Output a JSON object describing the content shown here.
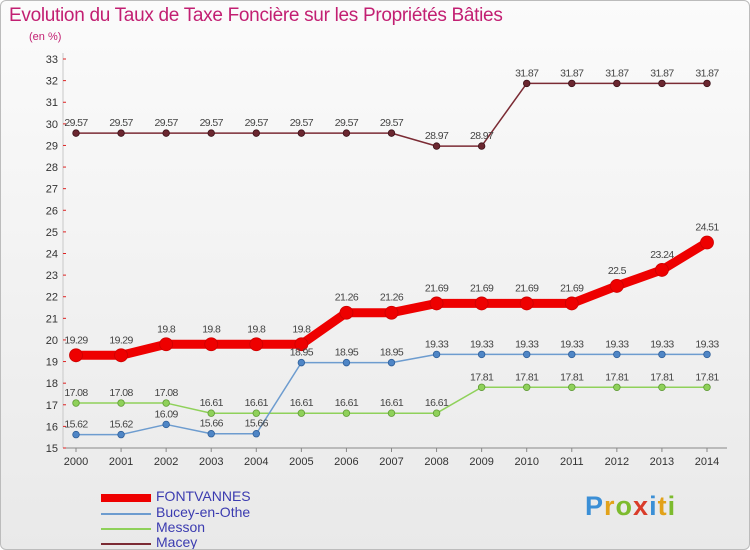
{
  "header": {
    "title": "Evolution du Taux de Taxe Foncière sur les Propriétés Bâties",
    "unit": "(en %)"
  },
  "chart_data": {
    "type": "line",
    "title": "Evolution du Taux de Taxe Foncière sur les Propriétés Bâties",
    "ylabel": "(en %)",
    "xlabel": "",
    "x": [
      2000,
      2001,
      2002,
      2003,
      2004,
      2005,
      2006,
      2007,
      2008,
      2009,
      2010,
      2011,
      2012,
      2013,
      2014
    ],
    "ylim": [
      15,
      33
    ],
    "yticks": [
      15,
      16,
      17,
      18,
      19,
      20,
      21,
      22,
      23,
      24,
      25,
      26,
      27,
      28,
      29,
      30,
      31,
      32,
      33
    ],
    "grid": false,
    "legend_position": "bottom-left",
    "series": [
      {
        "name": "FONTVANNES",
        "color": "#ee0000",
        "values": [
          19.29,
          19.29,
          19.8,
          19.8,
          19.8,
          19.8,
          21.26,
          21.26,
          21.69,
          21.69,
          21.69,
          21.69,
          22.5,
          23.24,
          24.51
        ]
      },
      {
        "name": "Bucey-en-Othe",
        "color": "#6d9ccf",
        "values": [
          15.62,
          15.62,
          16.09,
          15.66,
          15.66,
          18.95,
          18.95,
          18.95,
          19.33,
          19.33,
          19.33,
          19.33,
          19.33,
          19.33,
          19.33
        ]
      },
      {
        "name": "Messon",
        "color": "#8fd15a",
        "values": [
          17.08,
          17.08,
          17.08,
          16.61,
          16.61,
          16.61,
          16.61,
          16.61,
          16.61,
          17.81,
          17.81,
          17.81,
          17.81,
          17.81,
          17.81
        ]
      },
      {
        "name": "Macey",
        "color": "#7b2b34",
        "values": [
          29.57,
          29.57,
          29.57,
          29.57,
          29.57,
          29.57,
          29.57,
          29.57,
          28.97,
          28.97,
          31.87,
          31.87,
          31.87,
          31.87,
          31.87
        ]
      }
    ]
  },
  "logo": {
    "text": "Proxiti",
    "letters": [
      "P",
      "r",
      "o",
      "x",
      "i",
      "t",
      "i"
    ],
    "colors": [
      "#3b8fd6",
      "#e2a21a",
      "#7dbb2e",
      "#d93c2a",
      "#3b8fd6",
      "#e2a21a",
      "#7dbb2e"
    ]
  }
}
